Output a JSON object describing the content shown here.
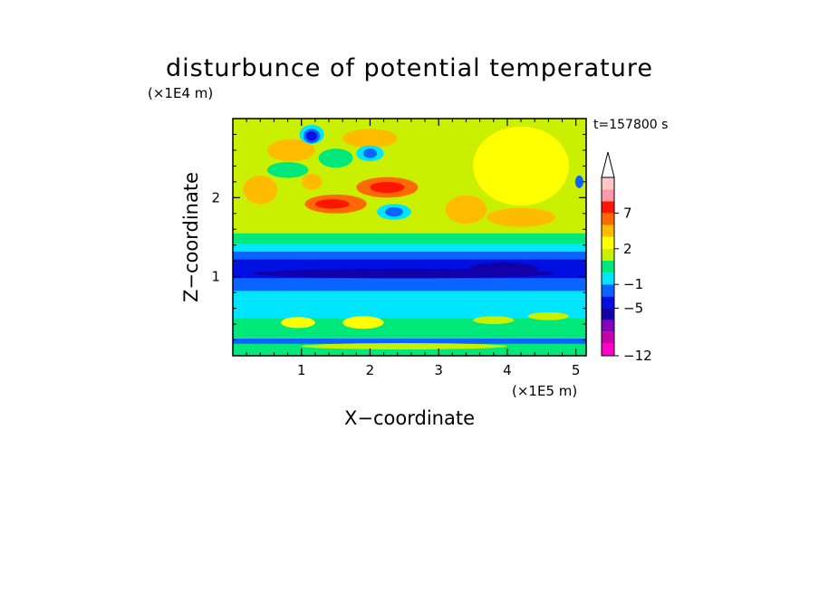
{
  "chart_data": {
    "type": "heatmap",
    "title": "disturbunce of potential temperature",
    "time_label": "t=157800 s",
    "xlabel": "X−coordinate",
    "ylabel": "Z−coordinate",
    "x_unit": "(×1E5 m)",
    "y_unit": "(×1E4 m)",
    "xlim": [
      0,
      5.15
    ],
    "ylim": [
      0,
      3.0
    ],
    "x_ticks": [
      "1",
      "2",
      "3",
      "4",
      "5"
    ],
    "y_ticks": [
      "1",
      "2"
    ],
    "colorbar": {
      "levels": [
        -12,
        -11,
        -9,
        -7,
        -5,
        -3,
        -1,
        0,
        1,
        2,
        3,
        5,
        7,
        9,
        11
      ],
      "labels": [
        "−12",
        "−5",
        "−1",
        "2",
        "7"
      ],
      "colors": [
        "#ff00cc",
        "#cc00aa",
        "#8800bb",
        "#1200a8",
        "#0010e0",
        "#0a64ff",
        "#00e5ff",
        "#00e87a",
        "#c8f000",
        "#ffff00",
        "#ffbb00",
        "#ff6a00",
        "#ff1500",
        "#ff99aa",
        "#ffc6c6"
      ],
      "extend": "max"
    },
    "bands": [
      {
        "z": [
          0.0,
          0.15
        ],
        "value": 0
      },
      {
        "z": [
          0.15,
          0.22
        ],
        "value": -3
      },
      {
        "z": [
          0.22,
          0.48
        ],
        "value": 0
      },
      {
        "z": [
          0.48,
          0.72
        ],
        "value": -1
      },
      {
        "z": [
          0.72,
          0.82
        ],
        "value": -1
      },
      {
        "z": [
          0.82,
          0.98
        ],
        "value": -3
      },
      {
        "z": [
          0.98,
          1.22
        ],
        "value": -5
      },
      {
        "z": [
          1.22,
          1.32
        ],
        "value": -3
      },
      {
        "z": [
          1.32,
          1.42
        ],
        "value": -1
      },
      {
        "z": [
          1.42,
          1.55
        ],
        "value": 0
      },
      {
        "z": [
          1.55,
          3.0
        ],
        "value": 1
      }
    ],
    "features": [
      {
        "x": 1.5,
        "z": 1.92,
        "rx": 0.45,
        "rz": 0.12,
        "value": 5
      },
      {
        "x": 2.25,
        "z": 2.13,
        "rx": 0.45,
        "rz": 0.13,
        "value": 5
      },
      {
        "x": 2.25,
        "z": 2.13,
        "rx": 0.25,
        "rz": 0.07,
        "value": 7
      },
      {
        "x": 1.45,
        "z": 1.92,
        "rx": 0.25,
        "rz": 0.06,
        "value": 7
      },
      {
        "x": 0.85,
        "z": 2.6,
        "rx": 0.35,
        "rz": 0.14,
        "value": 3
      },
      {
        "x": 0.4,
        "z": 2.1,
        "rx": 0.25,
        "rz": 0.18,
        "value": 3
      },
      {
        "x": 1.15,
        "z": 2.2,
        "rx": 0.15,
        "rz": 0.1,
        "value": 3
      },
      {
        "x": 2.0,
        "z": 2.75,
        "rx": 0.4,
        "rz": 0.12,
        "value": 3
      },
      {
        "x": 4.2,
        "z": 2.4,
        "rx": 0.7,
        "rz": 0.5,
        "value": 2
      },
      {
        "x": 4.2,
        "z": 1.75,
        "rx": 0.5,
        "rz": 0.12,
        "value": 3
      },
      {
        "x": 3.4,
        "z": 1.85,
        "rx": 0.3,
        "rz": 0.18,
        "value": 3
      },
      {
        "x": 1.15,
        "z": 2.8,
        "rx": 0.18,
        "rz": 0.12,
        "value": -1
      },
      {
        "x": 1.15,
        "z": 2.78,
        "rx": 0.12,
        "rz": 0.09,
        "value": -3
      },
      {
        "x": 1.15,
        "z": 2.78,
        "rx": 0.08,
        "rz": 0.06,
        "value": -5
      },
      {
        "x": 2.0,
        "z": 2.56,
        "rx": 0.2,
        "rz": 0.1,
        "value": -1
      },
      {
        "x": 2.0,
        "z": 2.56,
        "rx": 0.1,
        "rz": 0.06,
        "value": -3
      },
      {
        "x": 2.35,
        "z": 1.82,
        "rx": 0.25,
        "rz": 0.1,
        "value": -1
      },
      {
        "x": 2.35,
        "z": 1.82,
        "rx": 0.13,
        "rz": 0.06,
        "value": -3
      },
      {
        "x": 0.8,
        "z": 2.35,
        "rx": 0.3,
        "rz": 0.1,
        "value": 0
      },
      {
        "x": 1.5,
        "z": 2.5,
        "rx": 0.25,
        "rz": 0.12,
        "value": 0
      },
      {
        "x": 0.95,
        "z": 0.42,
        "rx": 0.25,
        "rz": 0.07,
        "value": 2
      },
      {
        "x": 1.9,
        "z": 0.42,
        "rx": 0.3,
        "rz": 0.08,
        "value": 2
      },
      {
        "x": 3.8,
        "z": 0.45,
        "rx": 0.3,
        "rz": 0.05,
        "value": 1
      },
      {
        "x": 4.6,
        "z": 0.5,
        "rx": 0.3,
        "rz": 0.05,
        "value": 1
      },
      {
        "x": 2.5,
        "z": 0.12,
        "rx": 1.5,
        "rz": 0.04,
        "value": 1
      },
      {
        "x": 2.5,
        "z": 1.04,
        "rx": 2.2,
        "rz": 0.06,
        "value": -7
      },
      {
        "x": 3.95,
        "z": 1.1,
        "rx": 0.5,
        "rz": 0.08,
        "value": -7
      },
      {
        "x": 5.05,
        "z": 2.2,
        "rx": 0.06,
        "rz": 0.08,
        "value": -3
      }
    ]
  }
}
